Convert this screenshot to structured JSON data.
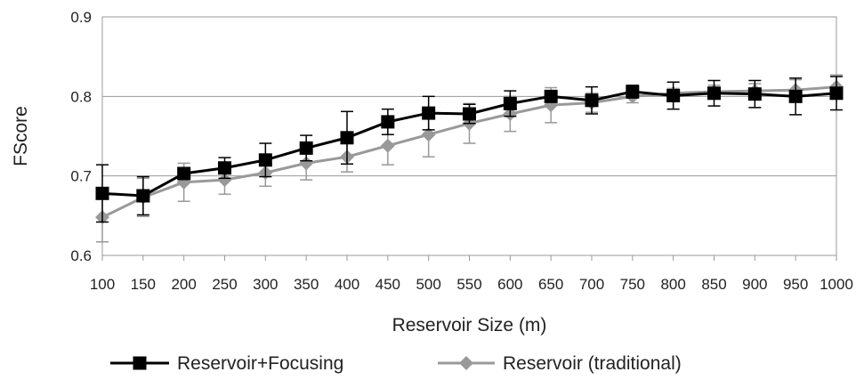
{
  "chart_data": {
    "type": "line",
    "xlabel": "Reservoir Size (m)",
    "ylabel": "FScore",
    "x": [
      100,
      150,
      200,
      250,
      300,
      350,
      400,
      450,
      500,
      550,
      600,
      650,
      700,
      750,
      800,
      850,
      900,
      950,
      1000
    ],
    "ylim": [
      0.6,
      0.9
    ],
    "yticks": [
      0.6,
      0.7,
      0.8,
      0.9
    ],
    "grid": true,
    "legend_position": "bottom",
    "series": [
      {
        "name": "Reservoir+Focusing",
        "color": "#000000",
        "marker": "square",
        "values": [
          0.678,
          0.675,
          0.703,
          0.71,
          0.72,
          0.735,
          0.748,
          0.768,
          0.779,
          0.778,
          0.791,
          0.8,
          0.795,
          0.806,
          0.801,
          0.804,
          0.803,
          0.8,
          0.804
        ],
        "errors": [
          0.036,
          0.024,
          0.004,
          0.013,
          0.021,
          0.016,
          0.033,
          0.016,
          0.021,
          0.012,
          0.016,
          0.004,
          0.017,
          0.008,
          0.017,
          0.016,
          0.017,
          0.023,
          0.021
        ]
      },
      {
        "name": "Reservoir (traditional)",
        "color": "#999999",
        "marker": "diamond",
        "values": [
          0.648,
          0.673,
          0.692,
          0.695,
          0.704,
          0.716,
          0.724,
          0.738,
          0.752,
          0.766,
          0.778,
          0.789,
          0.792,
          0.8,
          0.804,
          0.806,
          0.807,
          0.808,
          0.812
        ],
        "errors": [
          0.031,
          0.024,
          0.024,
          0.018,
          0.017,
          0.021,
          0.019,
          0.024,
          0.028,
          0.025,
          0.022,
          0.022,
          0.012,
          0.008,
          0.006,
          0.008,
          0.009,
          0.013,
          0.015
        ]
      }
    ]
  }
}
